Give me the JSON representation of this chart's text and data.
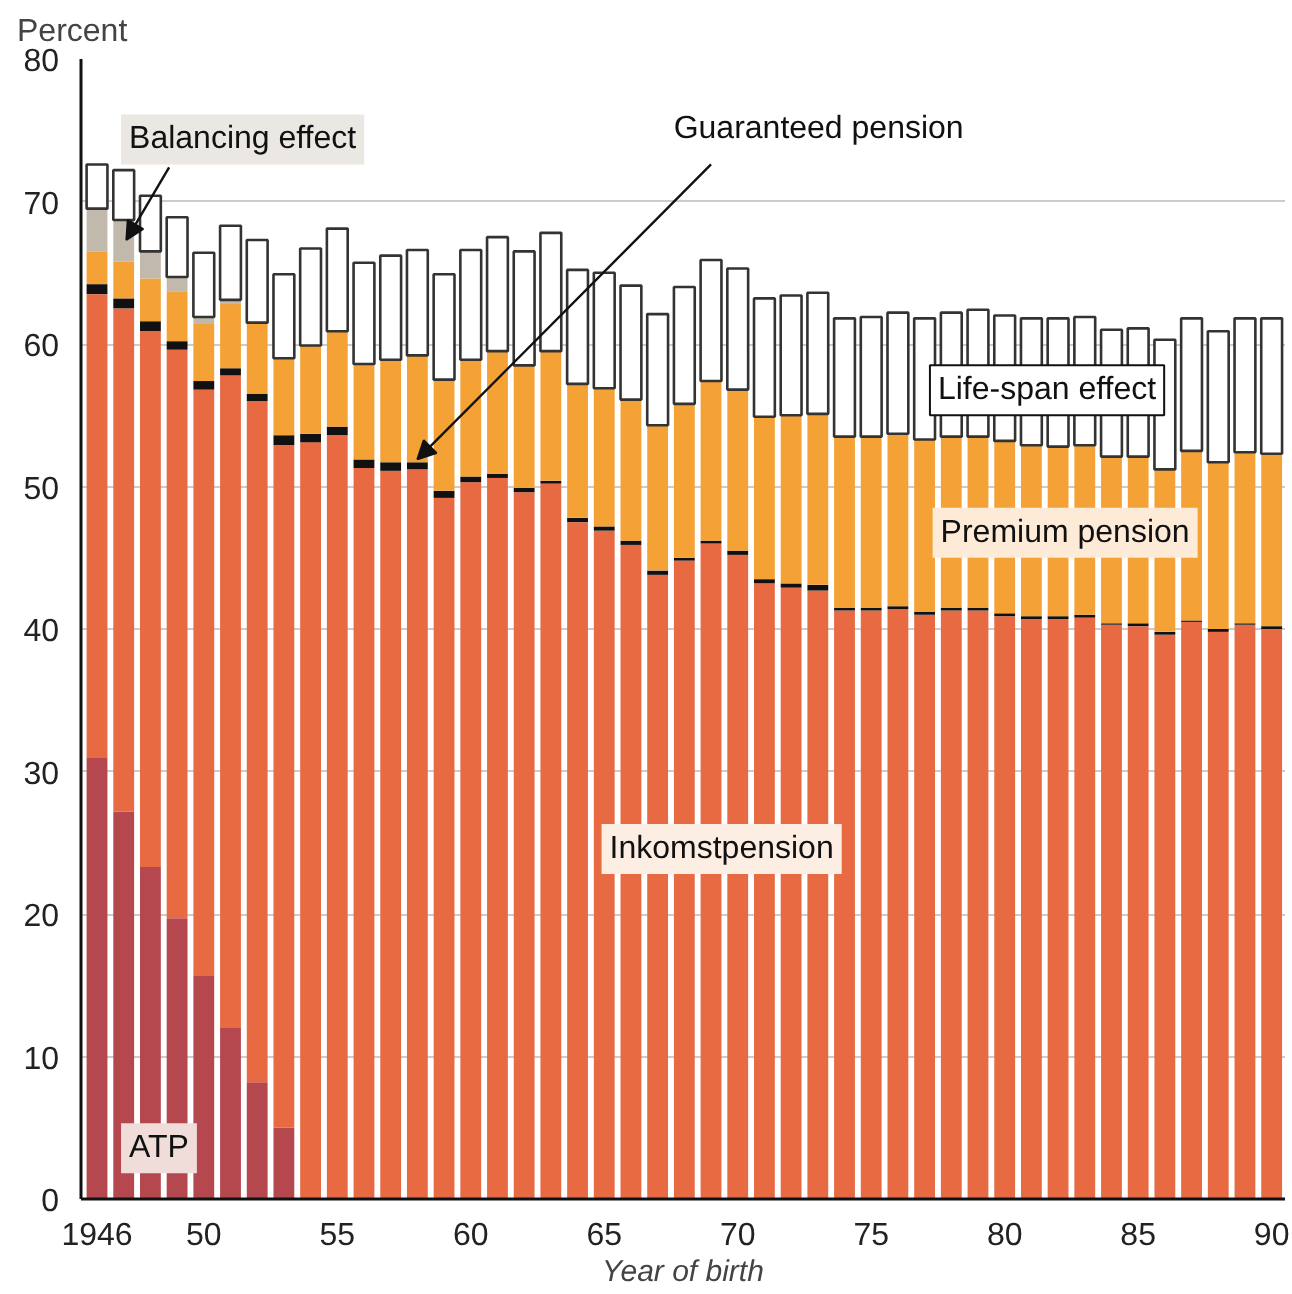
{
  "chart_data": {
    "type": "bar",
    "stacked": true,
    "ylabel": "Percent",
    "xlabel": "Year of birth",
    "x": [
      1946,
      1947,
      1948,
      1949,
      1950,
      1951,
      1952,
      1953,
      1954,
      1955,
      1956,
      1957,
      1958,
      1959,
      1960,
      1961,
      1962,
      1963,
      1964,
      1965,
      1966,
      1967,
      1968,
      1969,
      1970,
      1971,
      1972,
      1973,
      1974,
      1975,
      1976,
      1977,
      1978,
      1979,
      1980,
      1981,
      1982,
      1983,
      1984,
      1985,
      1986,
      1987,
      1988,
      1989,
      1990
    ],
    "xlim": [
      1945.4,
      1990.5
    ],
    "xticks": [
      1946,
      {
        "value": 1950,
        "label": "50"
      },
      {
        "value": 1955,
        "label": "55"
      },
      {
        "value": 1960,
        "label": "60"
      },
      {
        "value": 1965,
        "label": "65"
      },
      {
        "value": 1970,
        "label": "70"
      },
      {
        "value": 1975,
        "label": "75"
      },
      {
        "value": 1980,
        "label": "80"
      },
      {
        "value": 1985,
        "label": "85"
      },
      {
        "value": 1990,
        "label": "90"
      }
    ],
    "ylim": [
      0,
      80
    ],
    "yticks": [
      0,
      10,
      20,
      30,
      40,
      50,
      60,
      70,
      80
    ],
    "grid": "y",
    "series": [
      {
        "name": "ATP",
        "color": "#b5474f",
        "values": [
          31.0,
          27.2,
          23.3,
          19.7,
          15.7,
          12.0,
          8.2,
          5.0,
          null,
          null,
          null,
          null,
          null,
          null,
          null,
          null,
          null,
          null,
          null,
          null,
          null,
          null,
          null,
          null,
          null,
          null,
          null,
          null,
          null,
          null,
          null,
          null,
          null,
          null,
          null,
          null,
          null,
          null,
          null,
          null,
          null,
          null,
          null,
          null,
          null
        ]
      },
      {
        "name": "Inkomstpension",
        "color": "#e86a43",
        "values": [
          32.5,
          35.3,
          37.6,
          39.9,
          41.1,
          45.8,
          47.8,
          47.9,
          53.1,
          53.6,
          51.3,
          51.1,
          51.2,
          49.2,
          50.3,
          50.6,
          49.6,
          50.2,
          47.5,
          46.9,
          45.9,
          43.8,
          44.8,
          46.0,
          45.2,
          43.2,
          42.9,
          42.7,
          41.3,
          41.3,
          41.4,
          41.0,
          41.3,
          41.3,
          40.9,
          40.7,
          40.7,
          40.8,
          40.3,
          40.2,
          39.6,
          40.5,
          39.8,
          40.3,
          40.0
        ]
      },
      {
        "name": "Guaranteed pension",
        "color": "#111111",
        "values": [
          0.7,
          0.7,
          0.7,
          0.6,
          0.6,
          0.5,
          0.5,
          0.7,
          0.6,
          0.6,
          0.6,
          0.6,
          0.5,
          0.5,
          0.4,
          0.3,
          0.3,
          0.2,
          0.3,
          0.3,
          0.3,
          0.3,
          0.2,
          0.2,
          0.3,
          0.3,
          0.3,
          0.4,
          0.2,
          0.2,
          0.2,
          0.2,
          0.2,
          0.2,
          0.2,
          0.2,
          0.2,
          0.2,
          0.1,
          0.2,
          0.2,
          0.1,
          0.2,
          0.1,
          0.2
        ]
      },
      {
        "name": "Premium pension",
        "color": "#f4a236",
        "values": [
          2.3,
          2.6,
          3.0,
          3.5,
          4.0,
          4.5,
          5.0,
          5.4,
          6.2,
          6.7,
          6.7,
          7.2,
          7.5,
          7.8,
          8.2,
          8.6,
          8.6,
          9.1,
          9.4,
          9.7,
          9.9,
          10.2,
          10.8,
          11.2,
          11.3,
          11.4,
          11.8,
          12.0,
          12.0,
          12.0,
          12.1,
          12.1,
          12.0,
          12.0,
          12.1,
          12.0,
          11.9,
          11.9,
          11.7,
          11.7,
          11.4,
          11.9,
          11.7,
          12.0,
          12.1
        ]
      },
      {
        "name": "Balancing effect",
        "color": "#c2b9ad",
        "values": [
          3.0,
          2.9,
          1.9,
          1.0,
          0.5,
          0.3,
          null,
          null,
          null,
          null,
          null,
          null,
          null,
          null,
          null,
          null,
          null,
          null,
          null,
          null,
          null,
          null,
          null,
          null,
          null,
          null,
          null,
          null,
          null,
          null,
          null,
          null,
          null,
          null,
          null,
          null,
          null,
          null,
          null,
          null,
          null,
          null,
          null,
          null,
          null
        ]
      },
      {
        "name": "Life-span effect",
        "color": "#ffffff",
        "values": [
          3.1,
          3.5,
          3.9,
          4.2,
          4.5,
          5.2,
          5.8,
          5.9,
          6.8,
          7.2,
          7.1,
          7.3,
          7.4,
          7.4,
          7.7,
          8.0,
          8.0,
          8.3,
          8.0,
          8.1,
          8.0,
          7.8,
          8.2,
          8.5,
          8.5,
          8.3,
          8.4,
          8.5,
          8.3,
          8.4,
          8.5,
          8.5,
          8.7,
          8.9,
          8.8,
          8.9,
          9.0,
          9.0,
          8.9,
          9.0,
          9.1,
          9.3,
          9.2,
          9.4,
          9.5
        ]
      }
    ]
  }
}
